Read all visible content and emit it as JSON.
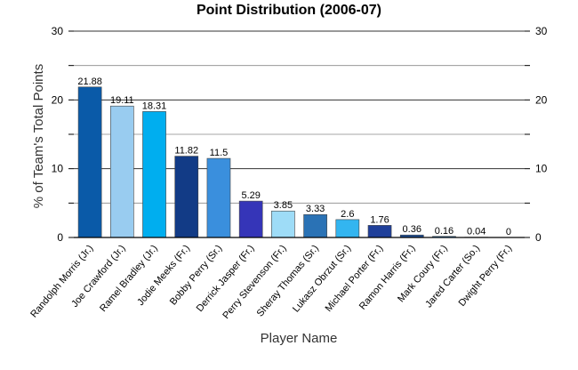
{
  "chart_data": {
    "type": "bar",
    "title": "Point Distribution (2006-07)",
    "xlabel": "Player Name",
    "ylabel": "% of Team's Total Points",
    "ylim": [
      0,
      30
    ],
    "yticks": [
      0,
      10,
      20,
      30
    ],
    "grid": true,
    "legend": "none",
    "categories": [
      "Randolph Morris (Jr.)",
      "Joe Crawford (Jr.)",
      "Ramel Bradley (Jr.)",
      "Jodie Meeks (Fr.)",
      "Bobby Perry (Sr.)",
      "Derrick Jasper (Fr.)",
      "Perry Stevenson (Fr.)",
      "Sheray Thomas (Sr.)",
      "Lukasz Obrzut (Sr.)",
      "Michael Porter (Fr.)",
      "Ramon Harris (Fr.)",
      "Mark Coury (Fr.)",
      "Jared Carter (So.)",
      "Dwight Perry (Fr.)"
    ],
    "values": [
      21.88,
      19.11,
      18.31,
      11.82,
      11.5,
      5.29,
      3.85,
      3.33,
      2.6,
      1.76,
      0.36,
      0.16,
      0.04,
      0
    ],
    "value_labels": [
      "21.88",
      "19.11",
      "18.31",
      "11.82",
      "11.5",
      "5.29",
      "3.85",
      "3.33",
      "2.6",
      "1.76",
      "0.36",
      "0.16",
      "0.04",
      "0"
    ],
    "colors": [
      "#0a5aa8",
      "#99ccf0",
      "#00aeef",
      "#123b86",
      "#3a8fdd",
      "#3535b8",
      "#9edcf7",
      "#2a72b5",
      "#33b5f0",
      "#1f3f9a",
      "#1f4f96",
      "#2d8fdc",
      "#0a5ab5",
      "#2a6fc0"
    ]
  }
}
